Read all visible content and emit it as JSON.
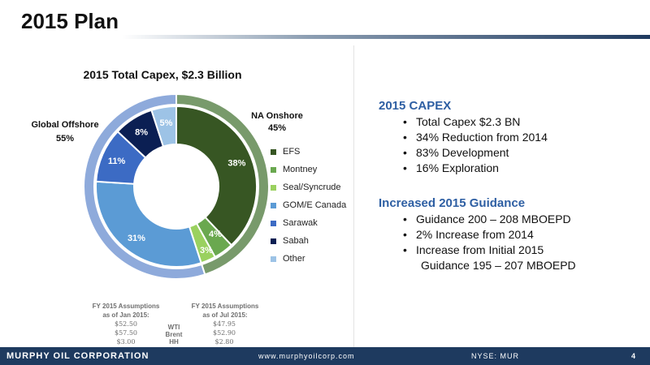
{
  "slide": {
    "title": "2015 Plan",
    "page_number": "4"
  },
  "chart_data": {
    "type": "pie",
    "style": "double-donut",
    "title": "2015 Total Capex, $2.3 Billion",
    "inner_series": {
      "categories": [
        "EFS",
        "Montney",
        "Seal/Syncrude",
        "GOM/E Canada",
        "Sarawak",
        "Sabah",
        "Other"
      ],
      "values": [
        38,
        4,
        3,
        31,
        11,
        8,
        5
      ],
      "labels": [
        "38%",
        "4%",
        "3%",
        "31%",
        "11%",
        "8%",
        "5%"
      ],
      "colors": [
        "#375623",
        "#6aa84f",
        "#9ad15f",
        "#5b9bd5",
        "#3c6bc4",
        "#0b1f53",
        "#9dc3e6"
      ]
    },
    "outer_series": {
      "categories": [
        "NA Onshore",
        "Global Offshore"
      ],
      "values": [
        45,
        55
      ],
      "labels": [
        "45%",
        "55%"
      ],
      "colors": [
        "#789a6b",
        "#8eaadb"
      ]
    },
    "legend": {
      "placement": "right",
      "entries": [
        "EFS",
        "Montney",
        "Seal/Syncrude",
        "GOM/E Canada",
        "Sarawak",
        "Sabah",
        "Other"
      ]
    }
  },
  "outer_labels": {
    "na_onshore_name": "NA Onshore",
    "na_onshore_pct": "45%",
    "global_offshore_name": "Global Offshore",
    "global_offshore_pct": "55%"
  },
  "capex": {
    "heading": "2015 CAPEX",
    "bullets": [
      "Total Capex $2.3 BN",
      "34% Reduction from 2014",
      "83% Development",
      "16% Exploration"
    ]
  },
  "guidance": {
    "heading": "Increased 2015 Guidance",
    "bullets": [
      "Guidance 200 – 208 MBOEPD",
      "2% Increase from 2014",
      "Increase from Initial 2015"
    ],
    "continuation": "Guidance 195 – 207 MBOEPD"
  },
  "assumptions": {
    "jan_heading_line1": "FY 2015 Assumptions",
    "jan_heading_line2": "as of Jan 2015:",
    "jul_heading_line1": "FY 2015 Assumptions",
    "jul_heading_line2": "as of Jul 2015:",
    "rows": [
      {
        "key": "WTI",
        "jan": "$52.50",
        "jul": "$47.95"
      },
      {
        "key": "Brent",
        "jan": "$57.50",
        "jul": "$52.90"
      },
      {
        "key": "HH",
        "jan": "$3.00",
        "jul": "$2.80"
      }
    ]
  },
  "footer": {
    "company": "MURPHY OIL CORPORATION",
    "url": "www.murphyoilcorp.com",
    "ticker": "NYSE: MUR"
  }
}
